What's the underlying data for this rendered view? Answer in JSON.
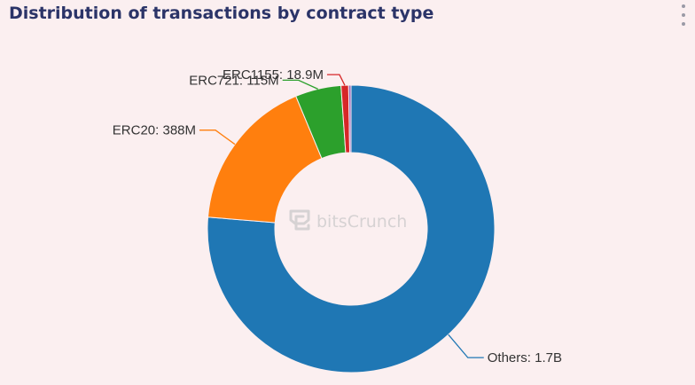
{
  "header": {
    "title": "Distribution of transactions by contract type",
    "menu_icon": "more-vertical-icon"
  },
  "watermark": {
    "text": "bitsCrunch",
    "icon": "bitscrunch-logo-icon"
  },
  "chart_data": {
    "type": "pie",
    "variant": "donut",
    "title": "Distribution of transactions by contract type",
    "legend": "none",
    "slices": [
      {
        "name": "Others",
        "value": 1700000000,
        "label": "Others: 1.7B",
        "color": "#1f77b4"
      },
      {
        "name": "ERC20",
        "value": 388000000,
        "label": "ERC20: 388M",
        "color": "#ff7f0e"
      },
      {
        "name": "ERC721",
        "value": 115000000,
        "label": "ERC721: 115M",
        "color": "#2ca02c"
      },
      {
        "name": "ERC1155",
        "value": 18900000,
        "label": "ERC1155: 18.9M",
        "color": "#d62728"
      },
      {
        "name": "",
        "value": 6000000,
        "label": "",
        "color": "#9467bd"
      }
    ]
  }
}
